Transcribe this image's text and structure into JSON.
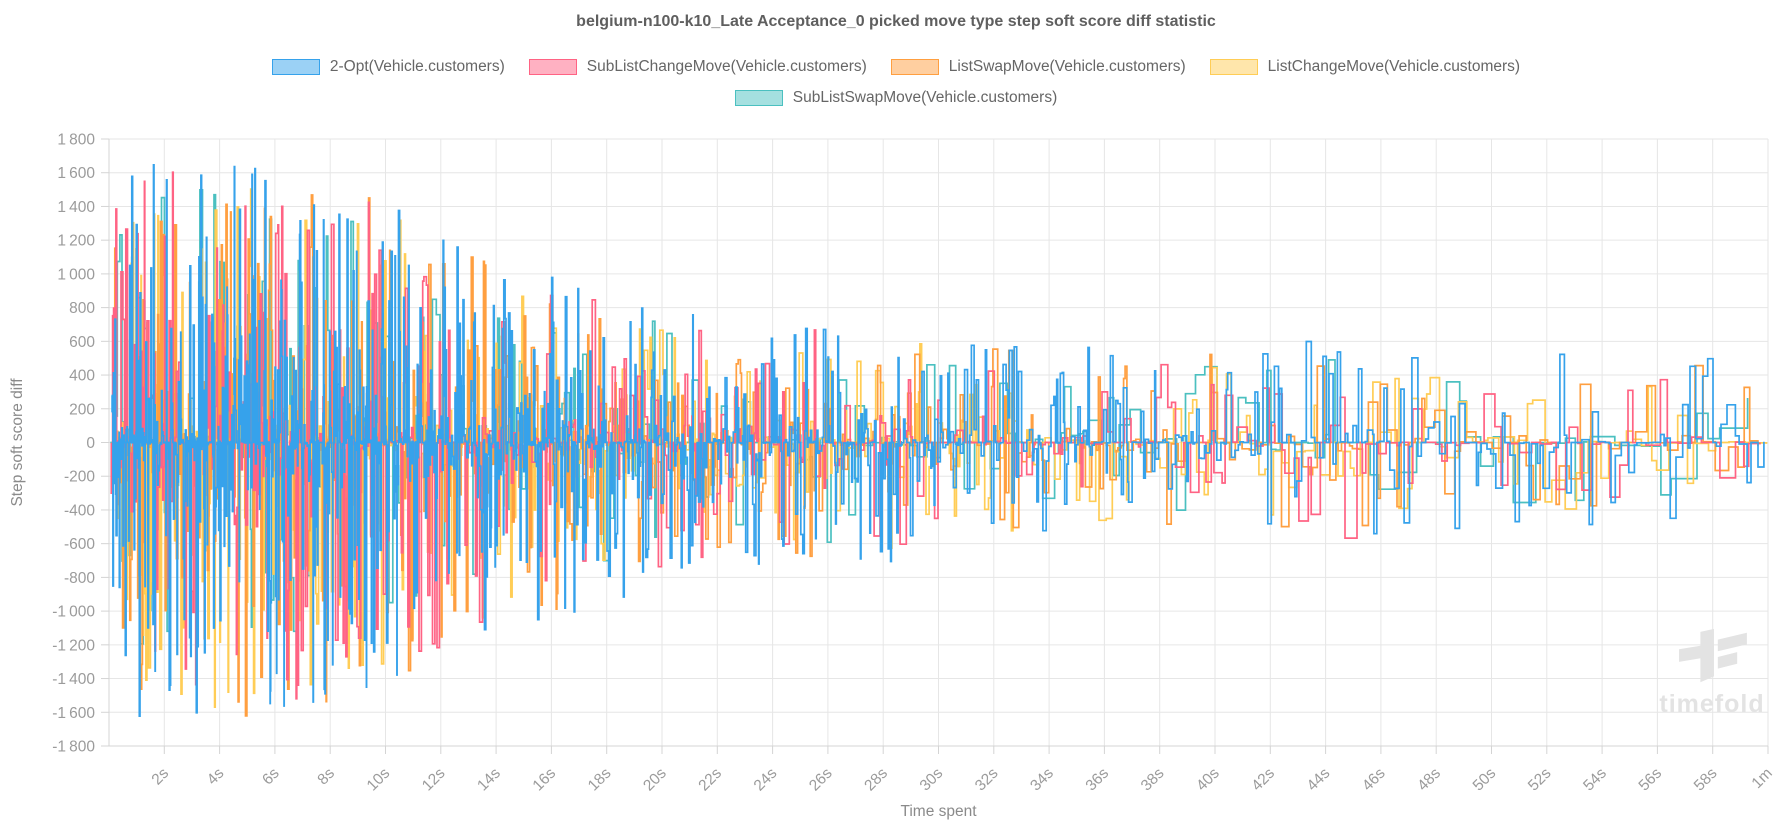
{
  "chart_data": {
    "type": "line",
    "title": "belgium-n100-k10_Late Acceptance_0 picked move type step soft score diff statistic",
    "xlabel": "Time spent",
    "ylabel": "Step soft score diff",
    "ylim": [
      -1800,
      1800
    ],
    "ytick_step": 200,
    "x_range_seconds": [
      0,
      60
    ],
    "xticks": [
      {
        "t": 2,
        "label": "2s"
      },
      {
        "t": 4,
        "label": "4s"
      },
      {
        "t": 6,
        "label": "6s"
      },
      {
        "t": 8,
        "label": "8s"
      },
      {
        "t": 10,
        "label": "10s"
      },
      {
        "t": 12,
        "label": "12s"
      },
      {
        "t": 14,
        "label": "14s"
      },
      {
        "t": 16,
        "label": "16s"
      },
      {
        "t": 18,
        "label": "18s"
      },
      {
        "t": 20,
        "label": "20s"
      },
      {
        "t": 22,
        "label": "22s"
      },
      {
        "t": 24,
        "label": "24s"
      },
      {
        "t": 26,
        "label": "26s"
      },
      {
        "t": 28,
        "label": "28s"
      },
      {
        "t": 30,
        "label": "30s"
      },
      {
        "t": 32,
        "label": "32s"
      },
      {
        "t": 34,
        "label": "34s"
      },
      {
        "t": 36,
        "label": "36s"
      },
      {
        "t": 38,
        "label": "38s"
      },
      {
        "t": 40,
        "label": "40s"
      },
      {
        "t": 42,
        "label": "42s"
      },
      {
        "t": 44,
        "label": "44s"
      },
      {
        "t": 46,
        "label": "46s"
      },
      {
        "t": 48,
        "label": "48s"
      },
      {
        "t": 50,
        "label": "50s"
      },
      {
        "t": 52,
        "label": "52s"
      },
      {
        "t": 54,
        "label": "54s"
      },
      {
        "t": 56,
        "label": "56s"
      },
      {
        "t": 58,
        "label": "58s"
      },
      {
        "t": 60,
        "label": "1m"
      }
    ],
    "grid": true,
    "legend_position": "top",
    "line_style": "step",
    "envelope_keyframes": [
      [
        0,
        1500
      ],
      [
        2,
        1750
      ],
      [
        4,
        1800
      ],
      [
        6,
        1650
      ],
      [
        8,
        1600
      ],
      [
        10,
        1500
      ],
      [
        12,
        1300
      ],
      [
        14,
        1100
      ],
      [
        16,
        1050
      ],
      [
        18,
        950
      ],
      [
        20,
        850
      ],
      [
        22,
        760
      ],
      [
        24,
        720
      ],
      [
        26,
        700
      ],
      [
        28,
        720
      ],
      [
        30,
        640
      ],
      [
        32,
        580
      ],
      [
        34,
        560
      ],
      [
        36,
        600
      ],
      [
        38,
        580
      ],
      [
        40,
        560
      ],
      [
        42,
        600
      ],
      [
        44,
        680
      ],
      [
        46,
        700
      ],
      [
        48,
        520
      ],
      [
        50,
        560
      ],
      [
        52,
        620
      ],
      [
        54,
        480
      ],
      [
        56,
        470
      ],
      [
        58,
        500
      ],
      [
        60,
        480
      ]
    ],
    "series": [
      {
        "name": "2-Opt(Vehicle.customers)",
        "color": "#36A2EB",
        "fill": "#9BD1F5",
        "amp_scale": 1.0,
        "step_interval_s": 0.02,
        "seed": 11
      },
      {
        "name": "SubListChangeMove(Vehicle.customers)",
        "color": "#FF6384",
        "fill": "#FFB1C2",
        "amp_scale": 0.95,
        "step_interval_s": 0.045,
        "seed": 23
      },
      {
        "name": "ListSwapMove(Vehicle.customers)",
        "color": "#FF9F40",
        "fill": "#FFCFA0",
        "amp_scale": 0.98,
        "step_interval_s": 0.034,
        "seed": 37
      },
      {
        "name": "ListChangeMove(Vehicle.customers)",
        "color": "#FFCD56",
        "fill": "#FFE6AB",
        "amp_scale": 0.92,
        "step_interval_s": 0.038,
        "seed": 41
      },
      {
        "name": "SubListSwapMove(Vehicle.customers)",
        "color": "#4BC0C0",
        "fill": "#A5E0E0",
        "amp_scale": 0.85,
        "step_interval_s": 0.07,
        "seed": 53
      }
    ]
  },
  "colors": {
    "grid": "#e6e6e6",
    "axis_border": "#d4d4d4",
    "tick_text": "#9b9b9b",
    "axis_title_text": "#8a8a8a",
    "title_text": "#5f5f5f",
    "legend_text": "#666666",
    "watermark": "#e3e3e3"
  },
  "watermark": {
    "text": "timefold"
  }
}
